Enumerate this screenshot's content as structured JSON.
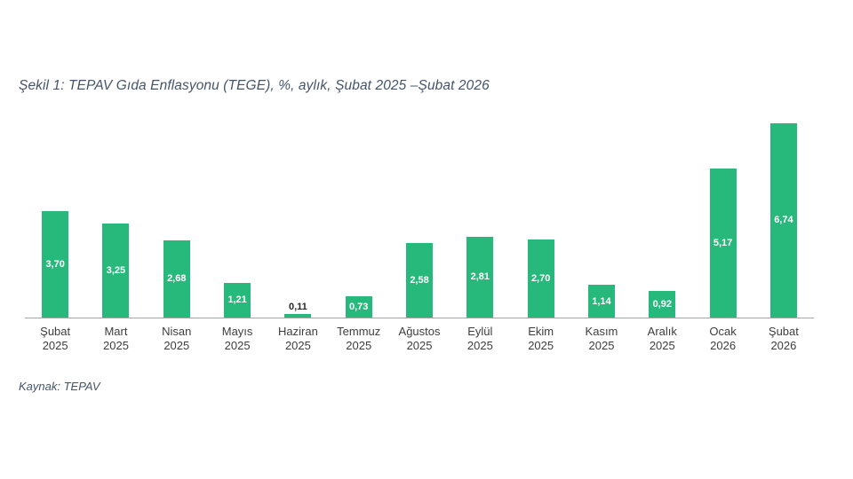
{
  "page": {
    "title": "Şekil 1: TEPAV Gıda Enflasyonu (TEGE), %, aylık, Şubat 2025 –Şubat 2026",
    "source": "Kaynak: TEPAV"
  },
  "colors": {
    "bar": "#27b87b",
    "title_text": "#44546a",
    "axis_line": "#a6a6a6",
    "axis_label_text": "#3d3d3d",
    "value_label_inside": "#ffffff",
    "value_label_outside": "#262626",
    "background": "#ffffff"
  },
  "chart_data": {
    "type": "bar",
    "title": "Şekil 1: TEPAV Gıda Enflasyonu (TEGE), %, aylık, Şubat 2025 –Şubat 2026",
    "source": "Kaynak: TEPAV",
    "categories": [
      "Şubat 2025",
      "Mart 2025",
      "Nisan 2025",
      "Mayıs 2025",
      "Haziran 2025",
      "Temmuz 2025",
      "Ağustos 2025",
      "Eylül 2025",
      "Ekim 2025",
      "Kasım 2025",
      "Aralık 2025",
      "Ocak 2026",
      "Şubat 2026"
    ],
    "values": [
      3.7,
      3.25,
      2.68,
      1.21,
      0.11,
      0.73,
      2.58,
      2.81,
      2.7,
      1.14,
      0.92,
      5.17,
      6.74
    ],
    "value_labels": [
      "3,70",
      "3,25",
      "2,68",
      "1,21",
      "0,11",
      "0,73",
      "2,58",
      "2,81",
      "2,70",
      "1,14",
      "0,92",
      "5,17",
      "6,74"
    ],
    "xlabel": "",
    "ylabel": "",
    "ylim": [
      0,
      7
    ],
    "grid": false,
    "legend": "none",
    "bar_color": "#27b87b",
    "value_unit": "%"
  }
}
